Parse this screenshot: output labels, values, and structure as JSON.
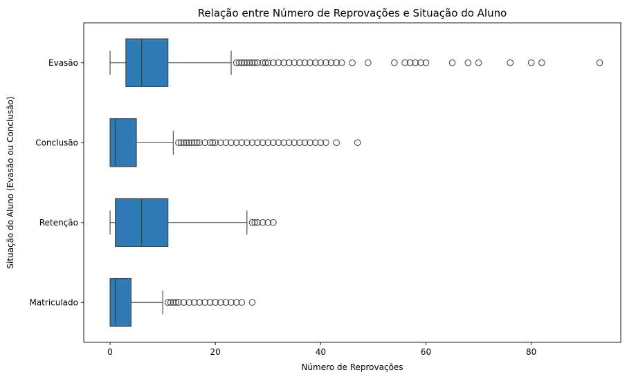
{
  "chart_data": {
    "type": "boxplot",
    "orientation": "horizontal",
    "title": "Relação entre Número de Reprovações e Situação do Aluno",
    "xlabel": "Número de Reprovações",
    "ylabel": "Situação do Aluno (Evasão ou Conclusão)",
    "xlim": [
      -5,
      97
    ],
    "xticks": [
      0,
      20,
      40,
      60,
      80
    ],
    "grid": false,
    "legend": "none",
    "colors": {
      "box": "#2f7bb5",
      "line": "#3d3d3d"
    },
    "categories": [
      "Evasão",
      "Conclusão",
      "Retenção",
      "Matriculado"
    ],
    "boxes": [
      {
        "category": "Evasão",
        "whisker_low": 0,
        "q1": 3,
        "median": 6,
        "q3": 11,
        "whisker_high": 23,
        "outliers": [
          24,
          24.5,
          25,
          25.5,
          26,
          26.5,
          27,
          27.5,
          28,
          29,
          29.5,
          30,
          31,
          32,
          33,
          34,
          35,
          36,
          37,
          38,
          39,
          40,
          41,
          42,
          43,
          44,
          46,
          49,
          54,
          56,
          57,
          58,
          59,
          60,
          65,
          68,
          70,
          76,
          80,
          82,
          93
        ]
      },
      {
        "category": "Conclusão",
        "whisker_low": 0,
        "q1": 0,
        "median": 1,
        "q3": 5,
        "whisker_high": 12,
        "outliers": [
          13,
          13.5,
          14,
          14.5,
          15,
          15.5,
          16,
          16.5,
          17,
          18,
          19,
          19.5,
          20,
          21,
          22,
          23,
          24,
          25,
          26,
          27,
          28,
          29,
          30,
          31,
          32,
          33,
          34,
          35,
          36,
          37,
          38,
          39,
          40,
          41,
          43,
          47
        ]
      },
      {
        "category": "Retenção",
        "whisker_low": 0,
        "q1": 1,
        "median": 6,
        "q3": 11,
        "whisker_high": 26,
        "outliers": [
          27,
          27.5,
          28,
          29,
          30,
          31
        ]
      },
      {
        "category": "Matriculado",
        "whisker_low": 0,
        "q1": 0,
        "median": 1,
        "q3": 4,
        "whisker_high": 10,
        "outliers": [
          11,
          11.5,
          12,
          12.5,
          13,
          14,
          15,
          16,
          17,
          18,
          19,
          20,
          21,
          22,
          23,
          24,
          25,
          27
        ]
      }
    ]
  }
}
